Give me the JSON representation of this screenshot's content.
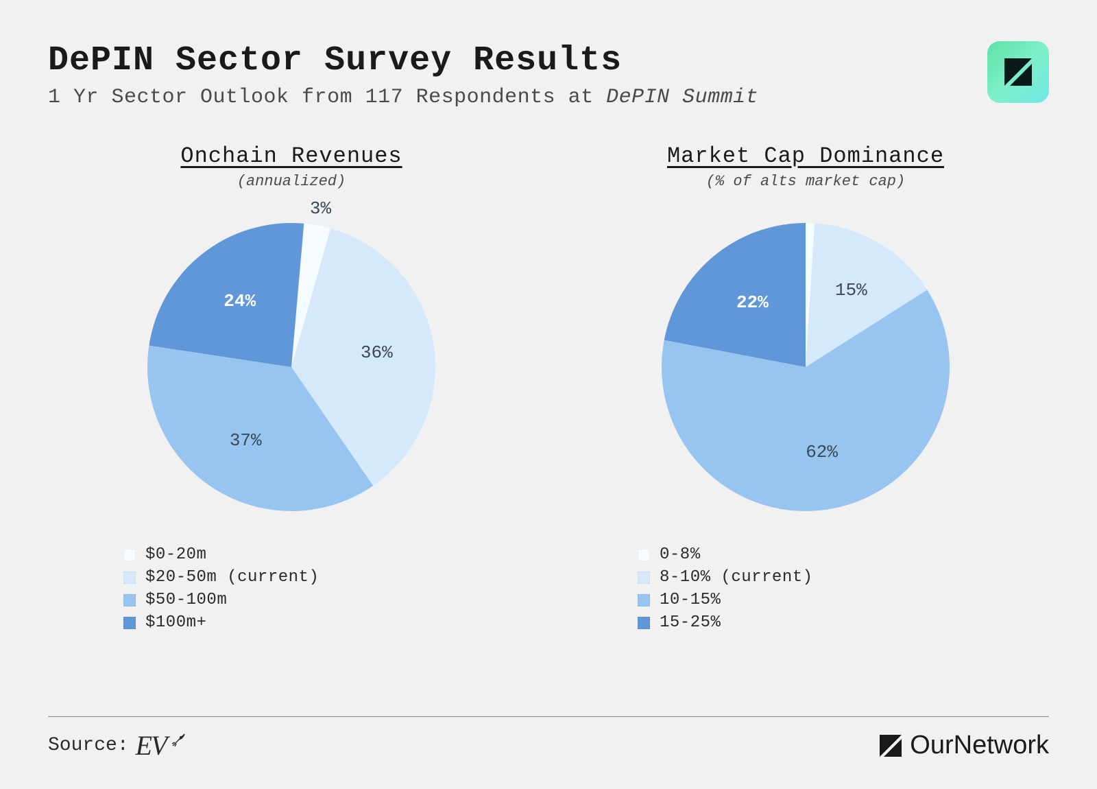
{
  "header": {
    "title": "DePIN Sector Survey Results",
    "subtitle_prefix": "1 Yr Sector Outlook from 117 Respondents at ",
    "subtitle_italic": "DePIN Summit"
  },
  "colors": {
    "background": "#f1f1f1",
    "title": "#1a1a1a",
    "subtitle": "#4a4a4a",
    "label_dark": "#3a4a5a",
    "label_light": "#ffffff",
    "logo_gradient_start": "#5de0a8",
    "logo_gradient_end": "#6ee8e8"
  },
  "charts": [
    {
      "id": "revenues",
      "title": "Onchain Revenues",
      "subtitle": "(annualized)",
      "type": "pie",
      "start_angle_deg": 5,
      "radius": 210,
      "slices": [
        {
          "label": "3%",
          "value": 3,
          "color": "#f6fbff",
          "label_style": "dark",
          "label_r": 1.12
        },
        {
          "label": "36%",
          "value": 36,
          "color": "#d6e9fb",
          "label_style": "dark",
          "label_r": 0.6
        },
        {
          "label": "37%",
          "value": 37,
          "color": "#97c5ef",
          "label_style": "dark",
          "label_r": 0.6
        },
        {
          "label": "24%",
          "value": 24,
          "color": "#6097d8",
          "label_style": "light",
          "label_r": 0.58
        }
      ],
      "legend": [
        {
          "swatch": "#f6fbff",
          "text": "$0-20m"
        },
        {
          "swatch": "#d6e9fb",
          "text": "$20-50m (current)"
        },
        {
          "swatch": "#97c5ef",
          "text": "$50-100m"
        },
        {
          "swatch": "#6097d8",
          "text": "$100m+"
        }
      ]
    },
    {
      "id": "dominance",
      "title": "Market Cap Dominance",
      "subtitle": "(% of alts market cap)",
      "type": "pie",
      "start_angle_deg": 0,
      "radius": 210,
      "slices": [
        {
          "label": "",
          "value": 1,
          "color": "#f6fbff",
          "label_style": "dark",
          "label_r": 0
        },
        {
          "label": "15%",
          "value": 15,
          "color": "#d6e9fb",
          "label_style": "dark",
          "label_r": 0.62
        },
        {
          "label": "62%",
          "value": 62,
          "color": "#97c5ef",
          "label_style": "dark",
          "label_r": 0.6
        },
        {
          "label": "22%",
          "value": 22,
          "color": "#6097d8",
          "label_style": "light",
          "label_r": 0.58
        }
      ],
      "legend": [
        {
          "swatch": "#f6fbff",
          "text": "0-8%"
        },
        {
          "swatch": "#d6e9fb",
          "text": "8-10% (current)"
        },
        {
          "swatch": "#97c5ef",
          "text": "10-15%"
        },
        {
          "swatch": "#6097d8",
          "text": "15-25%"
        }
      ]
    }
  ],
  "footer": {
    "source_label": "Source:",
    "source_name": "EV³",
    "brand": "OurNetwork"
  },
  "typography": {
    "title_fontsize": 50,
    "subtitle_fontsize": 30,
    "chart_title_fontsize": 32,
    "chart_subtitle_fontsize": 22,
    "legend_fontsize": 24,
    "slice_label_fontsize": 26,
    "font_family": "Courier New, monospace"
  }
}
